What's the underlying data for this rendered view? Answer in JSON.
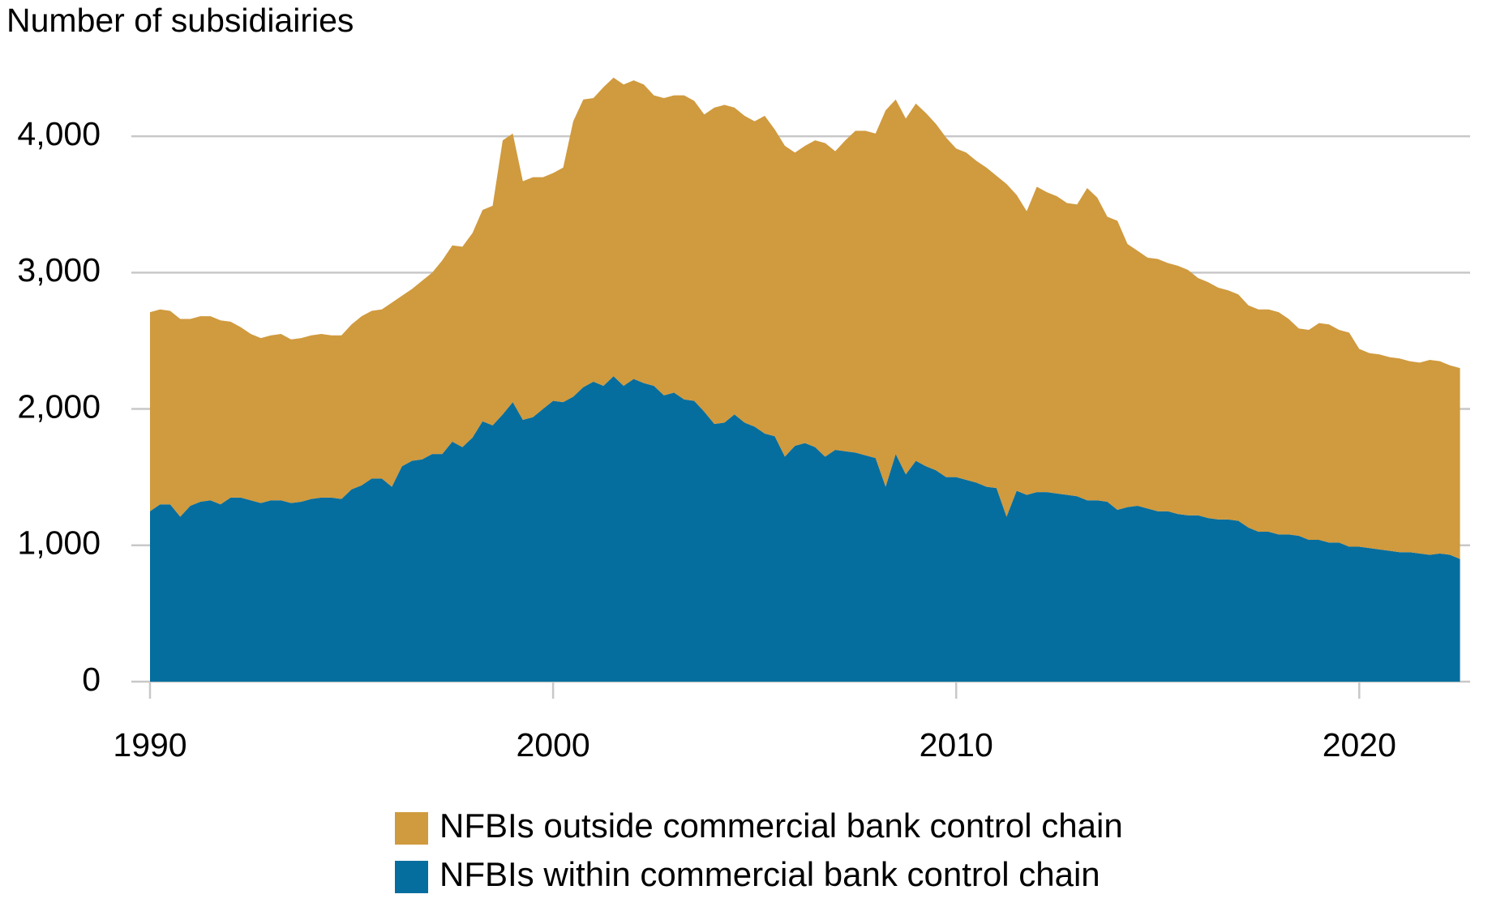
{
  "chart_data": {
    "type": "stacked_area",
    "title": "Number of subsidiairies",
    "x": [
      1990,
      1990.25,
      1990.5,
      1990.75,
      1991,
      1991.25,
      1991.5,
      1991.75,
      1992,
      1992.25,
      1992.5,
      1992.75,
      1993,
      1993.25,
      1993.5,
      1993.75,
      1994,
      1994.25,
      1994.5,
      1994.75,
      1995,
      1995.25,
      1995.5,
      1995.75,
      1996,
      1996.25,
      1996.5,
      1996.75,
      1997,
      1997.25,
      1997.5,
      1997.75,
      1998,
      1998.25,
      1998.5,
      1998.75,
      1999,
      1999.25,
      1999.5,
      1999.75,
      2000,
      2000.25,
      2000.5,
      2000.75,
      2001,
      2001.25,
      2001.5,
      2001.75,
      2002,
      2002.25,
      2002.5,
      2002.75,
      2003,
      2003.25,
      2003.5,
      2003.75,
      2004,
      2004.25,
      2004.5,
      2004.75,
      2005,
      2005.25,
      2005.5,
      2005.75,
      2006,
      2006.25,
      2006.5,
      2006.75,
      2007,
      2007.25,
      2007.5,
      2007.75,
      2008,
      2008.25,
      2008.5,
      2008.75,
      2009,
      2009.25,
      2009.5,
      2009.75,
      2010,
      2010.25,
      2010.5,
      2010.75,
      2011,
      2011.25,
      2011.5,
      2011.75,
      2012,
      2012.25,
      2012.5,
      2012.75,
      2013,
      2013.25,
      2013.5,
      2013.75,
      2014,
      2014.25,
      2014.5,
      2014.75,
      2015,
      2015.25,
      2015.5,
      2015.75,
      2016,
      2016.25,
      2016.5,
      2016.75,
      2017,
      2017.25,
      2017.5,
      2017.75,
      2018,
      2018.25,
      2018.5,
      2018.75,
      2019,
      2019.25,
      2019.5,
      2019.75,
      2020,
      2020.25,
      2020.5,
      2020.75,
      2021,
      2021.25,
      2021.5,
      2021.75,
      2022,
      2022.25,
      2022.5
    ],
    "series": [
      {
        "name": "NFBIs within commercial bank control chain",
        "color": "#066e9e",
        "values": [
          1250,
          1300,
          1300,
          1210,
          1290,
          1320,
          1330,
          1300,
          1350,
          1350,
          1330,
          1310,
          1330,
          1330,
          1310,
          1320,
          1340,
          1350,
          1350,
          1340,
          1410,
          1440,
          1490,
          1490,
          1430,
          1580,
          1620,
          1630,
          1670,
          1670,
          1760,
          1720,
          1790,
          1910,
          1880,
          1960,
          2050,
          1920,
          1940,
          2000,
          2060,
          2050,
          2090,
          2160,
          2200,
          2170,
          2240,
          2170,
          2220,
          2190,
          2170,
          2100,
          2120,
          2070,
          2060,
          1980,
          1890,
          1900,
          1960,
          1900,
          1870,
          1820,
          1800,
          1650,
          1730,
          1750,
          1720,
          1650,
          1700,
          1690,
          1680,
          1660,
          1640,
          1430,
          1670,
          1520,
          1620,
          1580,
          1550,
          1500,
          1500,
          1480,
          1460,
          1430,
          1420,
          1210,
          1400,
          1370,
          1390,
          1390,
          1380,
          1370,
          1360,
          1330,
          1330,
          1320,
          1260,
          1280,
          1290,
          1270,
          1250,
          1250,
          1230,
          1220,
          1220,
          1200,
          1190,
          1190,
          1180,
          1130,
          1100,
          1100,
          1080,
          1080,
          1070,
          1040,
          1040,
          1020,
          1020,
          990,
          990,
          980,
          970,
          960,
          950,
          950,
          940,
          930,
          940,
          930,
          900
        ]
      },
      {
        "name": "NFBIs outside commercial bank control chain",
        "color": "#d09a3e",
        "values": [
          1460,
          1430,
          1420,
          1450,
          1370,
          1360,
          1350,
          1350,
          1290,
          1250,
          1220,
          1210,
          1210,
          1220,
          1200,
          1200,
          1200,
          1200,
          1190,
          1200,
          1210,
          1240,
          1230,
          1240,
          1350,
          1250,
          1260,
          1310,
          1330,
          1420,
          1440,
          1470,
          1500,
          1550,
          1610,
          2010,
          1970,
          1750,
          1760,
          1700,
          1670,
          1720,
          2020,
          2110,
          2080,
          2190,
          2190,
          2210,
          2190,
          2190,
          2130,
          2180,
          2180,
          2230,
          2200,
          2180,
          2320,
          2330,
          2250,
          2250,
          2240,
          2330,
          2250,
          2280,
          2150,
          2180,
          2250,
          2300,
          2190,
          2280,
          2360,
          2380,
          2380,
          2760,
          2600,
          2610,
          2620,
          2590,
          2540,
          2490,
          2410,
          2400,
          2360,
          2340,
          2290,
          2440,
          2170,
          2080,
          2240,
          2200,
          2180,
          2140,
          2140,
          2290,
          2220,
          2090,
          2120,
          1930,
          1870,
          1840,
          1850,
          1820,
          1820,
          1800,
          1740,
          1730,
          1700,
          1680,
          1660,
          1630,
          1630,
          1630,
          1630,
          1580,
          1520,
          1540,
          1590,
          1600,
          1560,
          1570,
          1450,
          1430,
          1430,
          1420,
          1420,
          1400,
          1400,
          1430,
          1410,
          1390,
          1400
        ]
      }
    ],
    "xlim": [
      1990,
      2022.75
    ],
    "xticks": [
      1990,
      2000,
      2010,
      2020
    ],
    "ylim": [
      0,
      4500
    ],
    "yticks": [
      0,
      {
        "value": 1000,
        "label": "1,000"
      },
      {
        "value": 2000,
        "label": "2,000"
      },
      {
        "value": 3000,
        "label": "3,000"
      },
      {
        "value": 4000,
        "label": "4,000"
      }
    ],
    "grid": true
  }
}
